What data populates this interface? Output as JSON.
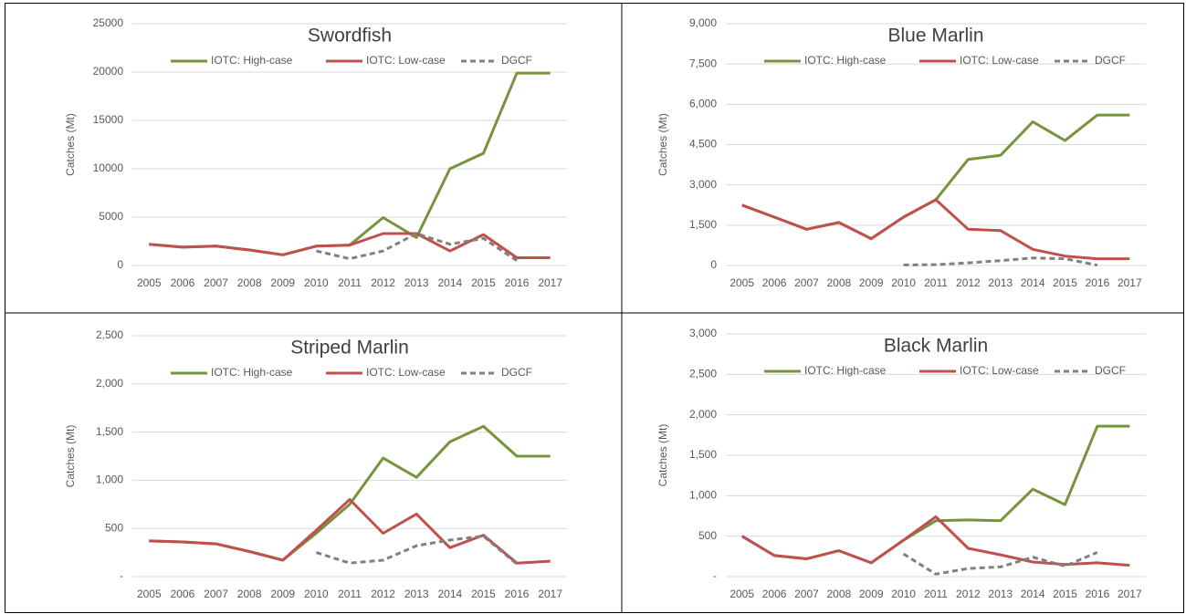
{
  "chart_data": [
    {
      "type": "line",
      "title": "Swordfish",
      "y_label": "Catches (Mt)",
      "categories": [
        "2005",
        "2006",
        "2007",
        "2008",
        "2009",
        "2010",
        "2011",
        "2012",
        "2013",
        "2014",
        "2015",
        "2016",
        "2017"
      ],
      "series": [
        {
          "name": "IOTC: High-case",
          "color": "#77933c",
          "dash": false,
          "values": [
            2200,
            1900,
            2000,
            1600,
            1100,
            2000,
            2100,
            4950,
            2900,
            10000,
            11600,
            19900,
            19900
          ]
        },
        {
          "name": "IOTC: Low-case",
          "color": "#c0504d",
          "dash": false,
          "values": [
            2200,
            1900,
            2000,
            1600,
            1100,
            2000,
            2100,
            3300,
            3300,
            1500,
            3200,
            800,
            800
          ]
        },
        {
          "name": "DGCF",
          "color": "#808080",
          "dash": true,
          "values": [
            null,
            null,
            null,
            null,
            null,
            1500,
            700,
            1500,
            3300,
            2200,
            2800,
            500,
            null
          ]
        }
      ],
      "ylim": [
        0,
        25000
      ],
      "yticks": [
        0,
        5000,
        10000,
        15000,
        20000,
        25000
      ],
      "grid": true
    },
    {
      "type": "line",
      "title": "Blue Marlin",
      "y_label": "Catches (Mt)",
      "categories": [
        "2005",
        "2006",
        "2007",
        "2008",
        "2009",
        "2010",
        "2011",
        "2012",
        "2013",
        "2014",
        "2015",
        "2016",
        "2017"
      ],
      "series": [
        {
          "name": "IOTC: High-case",
          "color": "#77933c",
          "dash": false,
          "values": [
            2250,
            1800,
            1350,
            1600,
            1000,
            1800,
            2450,
            3950,
            4100,
            5350,
            4650,
            5600,
            5600
          ]
        },
        {
          "name": "IOTC: Low-case",
          "color": "#c0504d",
          "dash": false,
          "values": [
            2250,
            1800,
            1350,
            1600,
            1000,
            1800,
            2450,
            1350,
            1300,
            600,
            350,
            250,
            250
          ]
        },
        {
          "name": "DGCF",
          "color": "#808080",
          "dash": true,
          "values": [
            null,
            null,
            null,
            null,
            null,
            20,
            30,
            100,
            180,
            280,
            250,
            10,
            null
          ]
        }
      ],
      "ylim": [
        0,
        9000
      ],
      "yticks": [
        0,
        {
          "value": 1500,
          "label": "1,500"
        },
        {
          "value": 3000,
          "label": "3,000"
        },
        {
          "value": 4500,
          "label": "4,500"
        },
        {
          "value": 6000,
          "label": "6,000"
        },
        {
          "value": 7500,
          "label": "7,500"
        },
        {
          "value": 9000,
          "label": "9,000"
        }
      ],
      "grid": true
    },
    {
      "type": "line",
      "title": "Striped Marlin",
      "y_label": "Catches (Mt)",
      "categories": [
        "2005",
        "2006",
        "2007",
        "2008",
        "2009",
        "2010",
        "2011",
        "2012",
        "2013",
        "2014",
        "2015",
        "2016",
        "2017"
      ],
      "series": [
        {
          "name": "IOTC: High-case",
          "color": "#77933c",
          "dash": false,
          "values": [
            370,
            360,
            340,
            260,
            170,
            450,
            750,
            1230,
            1030,
            1400,
            1560,
            1250,
            1250
          ]
        },
        {
          "name": "IOTC: Low-case",
          "color": "#c0504d",
          "dash": false,
          "values": [
            370,
            360,
            340,
            260,
            170,
            480,
            800,
            450,
            650,
            300,
            430,
            140,
            160
          ]
        },
        {
          "name": "DGCF",
          "color": "#808080",
          "dash": true,
          "values": [
            null,
            null,
            null,
            null,
            null,
            250,
            140,
            170,
            320,
            380,
            420,
            130,
            null
          ]
        }
      ],
      "ylim": [
        0,
        2500
      ],
      "yticks": [
        {
          "value": 0,
          "label": "-"
        },
        500,
        {
          "value": 1000,
          "label": "1,000"
        },
        {
          "value": 1500,
          "label": "1,500"
        },
        {
          "value": 2000,
          "label": "2,000"
        },
        {
          "value": 2500,
          "label": "2,500"
        }
      ],
      "grid": true
    },
    {
      "type": "line",
      "title": "Black Marlin",
      "y_label": "Catches (Mt)",
      "categories": [
        "2005",
        "2006",
        "2007",
        "2008",
        "2009",
        "2010",
        "2011",
        "2012",
        "2013",
        "2014",
        "2015",
        "2016",
        "2017"
      ],
      "series": [
        {
          "name": "IOTC: High-case",
          "color": "#77933c",
          "dash": false,
          "values": [
            500,
            260,
            220,
            320,
            170,
            450,
            690,
            700,
            690,
            1080,
            890,
            1860,
            1860
          ]
        },
        {
          "name": "IOTC: Low-case",
          "color": "#c0504d",
          "dash": false,
          "values": [
            500,
            260,
            220,
            320,
            170,
            450,
            740,
            350,
            270,
            180,
            150,
            170,
            140
          ]
        },
        {
          "name": "DGCF",
          "color": "#808080",
          "dash": true,
          "values": [
            null,
            null,
            null,
            null,
            null,
            280,
            30,
            100,
            120,
            240,
            130,
            300,
            null
          ]
        }
      ],
      "ylim": [
        0,
        3000
      ],
      "yticks": [
        {
          "value": 0,
          "label": "-"
        },
        500,
        {
          "value": 1000,
          "label": "1,000"
        },
        {
          "value": 1500,
          "label": "1,500"
        },
        {
          "value": 2000,
          "label": "2,000"
        },
        {
          "value": 2500,
          "label": "2,500"
        },
        {
          "value": 3000,
          "label": "3,000"
        }
      ],
      "grid": true
    }
  ]
}
